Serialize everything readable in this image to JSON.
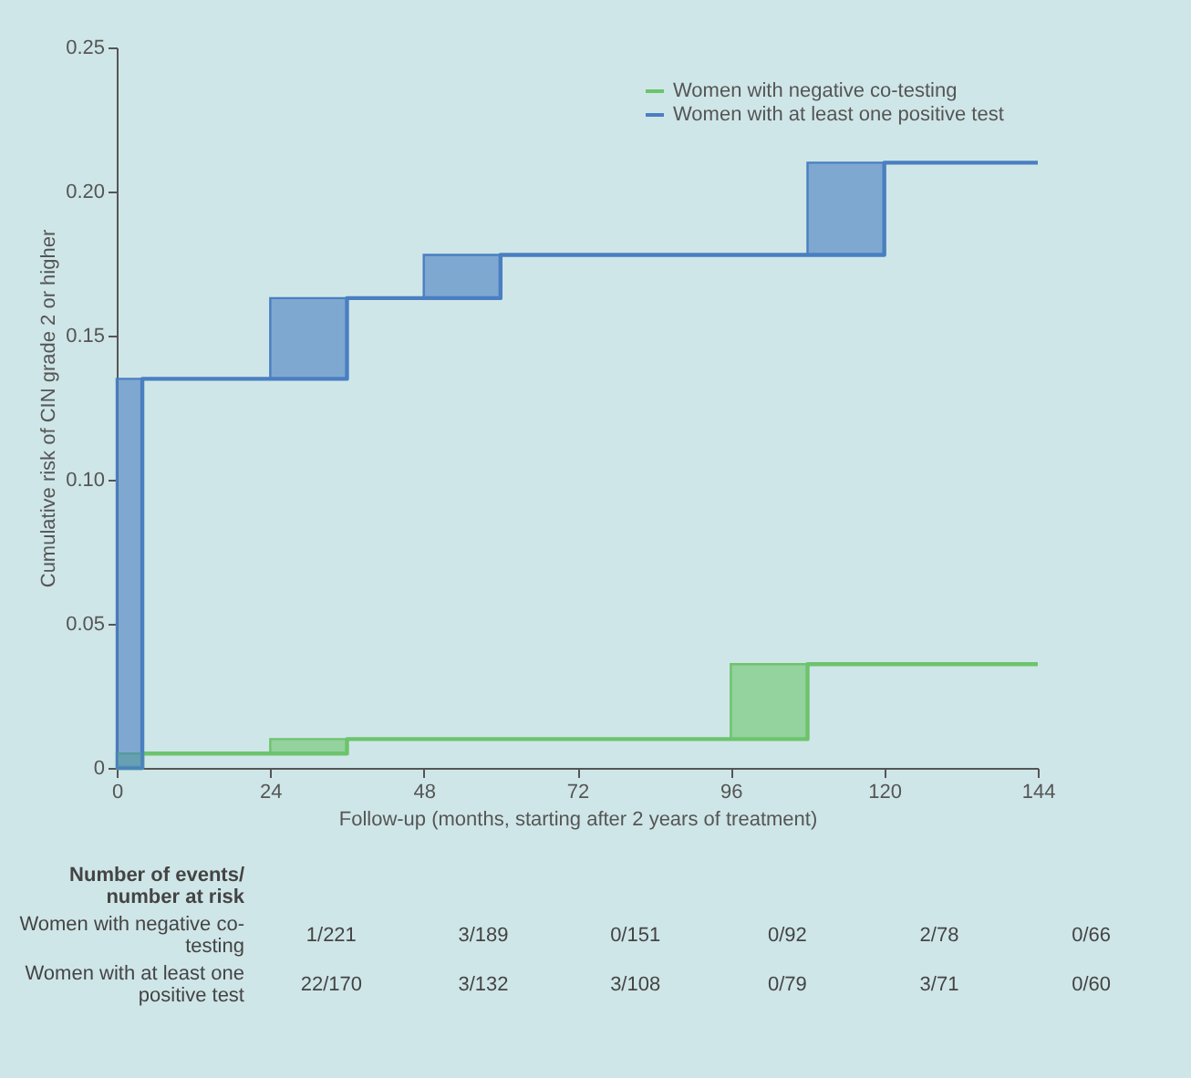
{
  "chart_data": {
    "type": "step",
    "xlabel": "Follow-up (months, starting after 2 years of treatment)",
    "ylabel": "Cumulative risk of CIN grade 2 or higher",
    "xlim": [
      0,
      144
    ],
    "xticks": [
      0,
      24,
      48,
      72,
      96,
      120,
      144
    ],
    "ylim": [
      0,
      0.25
    ],
    "yticks": [
      0,
      0.05,
      {
        "value": 0.1,
        "label": "0.10"
      },
      0.15,
      {
        "value": 0.2,
        "label": "0.20"
      },
      0.25
    ],
    "grid": false,
    "legend": "top right",
    "series": [
      {
        "name": "Women with negative co-testing",
        "color": "#6cc46c",
        "x": [
          0,
          4,
          4,
          24,
          36,
          36,
          96,
          108,
          108,
          144
        ],
        "values": [
          0,
          0,
          0.005,
          0.005,
          0.005,
          0.01,
          0.01,
          0.01,
          0.036,
          0.036
        ],
        "lower": [
          0,
          0,
          null,
          0.005,
          0.005,
          null,
          0.01,
          0.01,
          null,
          null
        ],
        "upper": [
          0.005,
          0.005,
          null,
          0.01,
          0.01,
          null,
          0.036,
          0.036,
          null,
          null
        ]
      },
      {
        "name": "Women with at least one positive test",
        "color": "#4a7fc1",
        "x": [
          0,
          4,
          4,
          24,
          36,
          36,
          48,
          60,
          60,
          108,
          120,
          120,
          144
        ],
        "values": [
          0,
          0,
          0.135,
          0.135,
          0.135,
          0.163,
          0.163,
          0.163,
          0.178,
          0.178,
          0.178,
          0.21,
          0.21
        ],
        "lower": [
          0,
          0,
          null,
          0.135,
          0.135,
          null,
          0.163,
          0.163,
          null,
          0.178,
          0.178,
          null,
          null
        ],
        "upper": [
          0.135,
          0.135,
          null,
          0.163,
          0.163,
          null,
          0.178,
          0.178,
          null,
          0.21,
          0.21,
          null,
          null
        ]
      }
    ],
    "annotations": [
      "Number of events/ number at risk",
      "Women with negative co-testing",
      "1/221",
      "3/189",
      "0/151",
      "0/92",
      "2/78",
      "0/66",
      "Women with at least one positive test",
      "22/170",
      "3/132",
      "3/108",
      "0/79",
      "3/71",
      "0/60"
    ]
  }
}
